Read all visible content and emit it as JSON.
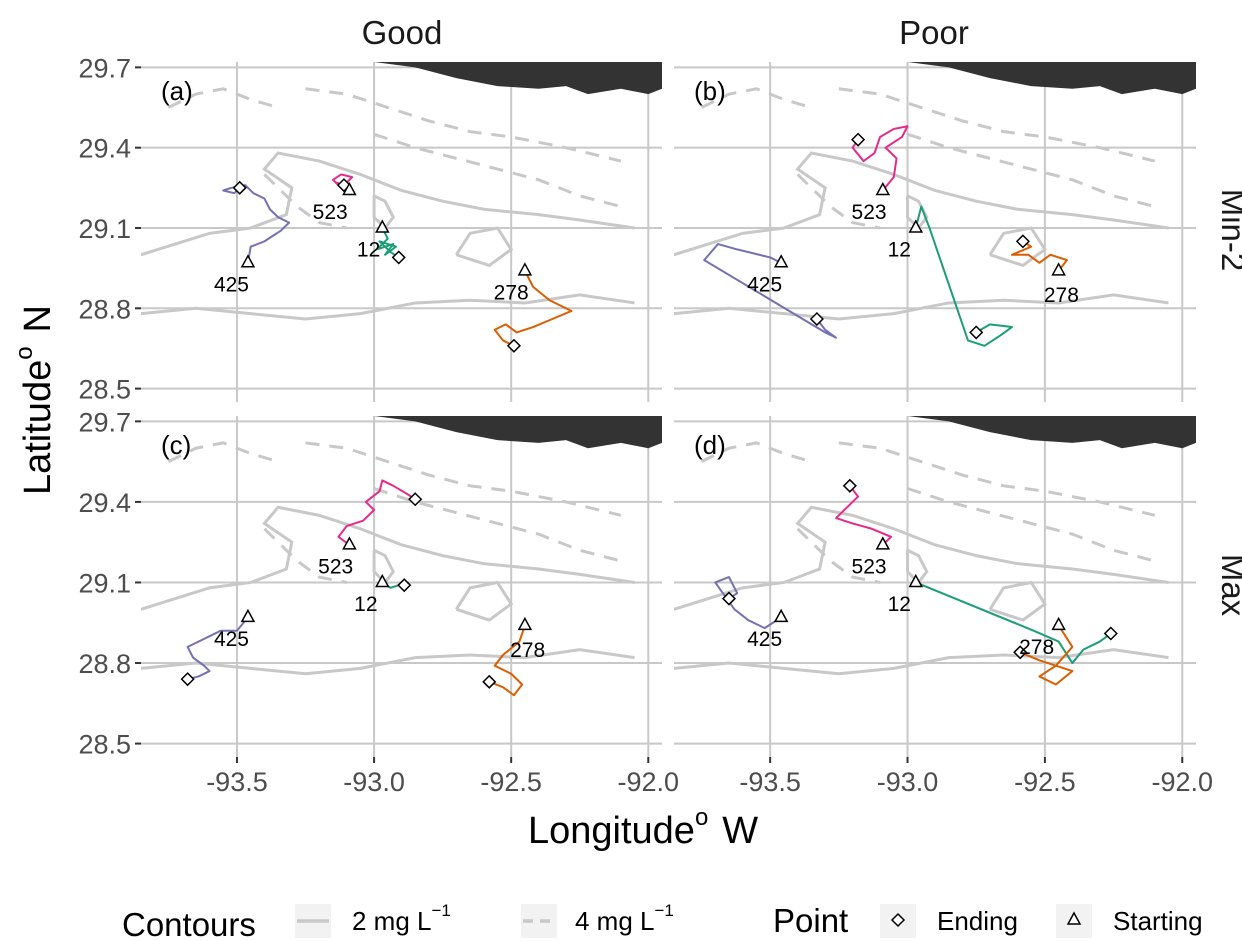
{
  "chart_data": {
    "type": "line",
    "xlabel": "Longitude",
    "xlabel_sup": "o",
    "xlabel_suffix": "W",
    "ylabel": "Latitude",
    "ylabel_sup": "o",
    "ylabel_suffix": "N",
    "xlim": [
      -93.85,
      -91.95
    ],
    "ylim": [
      28.45,
      29.72
    ],
    "x_ticks": [
      -93.5,
      -93.0,
      -92.5,
      -92.0
    ],
    "x_tick_labels": [
      "-93.5",
      "-93.0",
      "-92.5",
      "-92.0"
    ],
    "y_ticks": [
      28.5,
      28.8,
      29.1,
      29.4,
      29.7
    ],
    "y_tick_labels": [
      "28.5",
      "28.8",
      "29.1",
      "29.4",
      "29.7"
    ],
    "grid": true,
    "columns": [
      "Good",
      "Poor"
    ],
    "rows": [
      "Min-2",
      "Max"
    ],
    "colors": {
      "425": "#7570b3",
      "523": "#e7298a",
      "12": "#1b9e77",
      "278": "#d95f02",
      "grid": "#c8c8c8",
      "contour": "#c8c8c8",
      "land": "#333333"
    },
    "legend": {
      "position": "bottom",
      "contours_title": "Contours",
      "contour_2_text": "2  mg  L",
      "contour_4_text": "4  mg  L",
      "contour_exp": "−1",
      "point_title": "Point",
      "ending": "Ending",
      "starting": "Starting"
    },
    "panels": [
      {
        "tag": "(a)",
        "column": "Good",
        "row": "Min-2",
        "tracks": [
          {
            "id": "425",
            "start": [
              -93.46,
              28.97
            ],
            "end": [
              -93.49,
              29.25
            ],
            "label_at": [
              -93.52,
              28.93
            ],
            "path": [
              [
                -93.46,
                28.97
              ],
              [
                -93.45,
                29.03
              ],
              [
                -93.4,
                29.05
              ],
              [
                -93.37,
                29.07
              ],
              [
                -93.34,
                29.09
              ],
              [
                -93.31,
                29.12
              ],
              [
                -93.35,
                29.14
              ],
              [
                -93.38,
                29.17
              ],
              [
                -93.4,
                29.21
              ],
              [
                -93.44,
                29.23
              ],
              [
                -93.47,
                29.26
              ],
              [
                -93.52,
                29.25
              ],
              [
                -93.55,
                29.24
              ],
              [
                -93.51,
                29.23
              ],
              [
                -93.49,
                29.25
              ]
            ]
          },
          {
            "id": "523",
            "start": [
              -93.09,
              29.24
            ],
            "end": [
              -93.11,
              29.26
            ],
            "label_at": [
              -93.16,
              29.2
            ],
            "path": [
              [
                -93.09,
                29.24
              ],
              [
                -93.1,
                29.27
              ],
              [
                -93.08,
                29.29
              ],
              [
                -93.12,
                29.3
              ],
              [
                -93.15,
                29.28
              ],
              [
                -93.12,
                29.25
              ],
              [
                -93.14,
                29.27
              ],
              [
                -93.11,
                29.26
              ]
            ]
          },
          {
            "id": "12",
            "start": [
              -92.97,
              29.1
            ],
            "end": [
              -92.91,
              28.99
            ],
            "label_at": [
              -93.02,
              29.06
            ],
            "path": [
              [
                -92.97,
                29.1
              ],
              [
                -92.95,
                29.06
              ],
              [
                -92.99,
                29.02
              ],
              [
                -92.93,
                29.04
              ],
              [
                -92.96,
                29.0
              ],
              [
                -92.92,
                29.03
              ],
              [
                -92.98,
                29.05
              ],
              [
                -92.94,
                29.01
              ],
              [
                -92.91,
                28.99
              ]
            ]
          },
          {
            "id": "278",
            "start": [
              -92.45,
              28.94
            ],
            "end": [
              -92.49,
              28.66
            ],
            "label_at": [
              -92.5,
              28.9
            ],
            "path": [
              [
                -92.45,
                28.94
              ],
              [
                -92.42,
                28.88
              ],
              [
                -92.36,
                28.83
              ],
              [
                -92.28,
                28.79
              ],
              [
                -92.35,
                28.76
              ],
              [
                -92.42,
                28.73
              ],
              [
                -92.48,
                28.71
              ],
              [
                -92.52,
                28.74
              ],
              [
                -92.56,
                28.72
              ],
              [
                -92.53,
                28.68
              ],
              [
                -92.49,
                28.66
              ]
            ]
          }
        ]
      },
      {
        "tag": "(b)",
        "column": "Poor",
        "row": "Min-2",
        "tracks": [
          {
            "id": "425",
            "start": [
              -93.46,
              28.97
            ],
            "end": [
              -93.33,
              28.76
            ],
            "label_at": [
              -93.52,
              28.93
            ],
            "path": [
              [
                -93.46,
                28.97
              ],
              [
                -93.5,
                28.99
              ],
              [
                -93.62,
                29.02
              ],
              [
                -93.69,
                29.04
              ],
              [
                -93.74,
                28.98
              ],
              [
                -93.3,
                28.71
              ],
              [
                -93.26,
                28.69
              ],
              [
                -93.3,
                28.72
              ],
              [
                -93.33,
                28.76
              ]
            ]
          },
          {
            "id": "523",
            "start": [
              -93.09,
              29.24
            ],
            "end": [
              -93.18,
              29.43
            ],
            "label_at": [
              -93.14,
              29.2
            ],
            "path": [
              [
                -93.09,
                29.24
              ],
              [
                -93.05,
                29.29
              ],
              [
                -93.04,
                29.36
              ],
              [
                -93.08,
                29.4
              ],
              [
                -93.02,
                29.44
              ],
              [
                -93.0,
                29.48
              ],
              [
                -93.05,
                29.47
              ],
              [
                -93.1,
                29.44
              ],
              [
                -93.12,
                29.38
              ],
              [
                -93.16,
                29.35
              ],
              [
                -93.2,
                29.4
              ],
              [
                -93.18,
                29.43
              ]
            ]
          },
          {
            "id": "12",
            "start": [
              -92.97,
              29.1
            ],
            "end": [
              -92.75,
              28.71
            ],
            "label_at": [
              -93.03,
              29.06
            ],
            "path": [
              [
                -92.97,
                29.1
              ],
              [
                -92.95,
                29.18
              ],
              [
                -92.92,
                29.1
              ],
              [
                -92.78,
                28.68
              ],
              [
                -92.72,
                28.66
              ],
              [
                -92.66,
                28.7
              ],
              [
                -92.62,
                28.73
              ],
              [
                -92.7,
                28.74
              ],
              [
                -92.75,
                28.71
              ]
            ]
          },
          {
            "id": "278",
            "start": [
              -92.45,
              28.94
            ],
            "end": [
              -92.58,
              29.05
            ],
            "label_at": [
              -92.44,
              28.89
            ],
            "path": [
              [
                -92.45,
                28.94
              ],
              [
                -92.42,
                28.98
              ],
              [
                -92.48,
                29.0
              ],
              [
                -92.52,
                28.97
              ],
              [
                -92.56,
                29.0
              ],
              [
                -92.62,
                29.0
              ],
              [
                -92.55,
                29.03
              ],
              [
                -92.58,
                29.05
              ]
            ]
          }
        ]
      },
      {
        "tag": "(c)",
        "column": "Good",
        "row": "Max",
        "tracks": [
          {
            "id": "425",
            "start": [
              -93.46,
              28.97
            ],
            "end": [
              -93.68,
              28.74
            ],
            "label_at": [
              -93.52,
              28.93
            ],
            "path": [
              [
                -93.46,
                28.97
              ],
              [
                -93.5,
                28.92
              ],
              [
                -93.56,
                28.92
              ],
              [
                -93.62,
                28.89
              ],
              [
                -93.68,
                28.86
              ],
              [
                -93.66,
                28.82
              ],
              [
                -93.62,
                28.79
              ],
              [
                -93.6,
                28.77
              ],
              [
                -93.64,
                28.75
              ],
              [
                -93.68,
                28.74
              ]
            ]
          },
          {
            "id": "523",
            "start": [
              -93.09,
              29.24
            ],
            "end": [
              -92.85,
              29.41
            ],
            "label_at": [
              -93.14,
              29.2
            ],
            "path": [
              [
                -93.09,
                29.24
              ],
              [
                -93.13,
                29.27
              ],
              [
                -93.1,
                29.31
              ],
              [
                -93.04,
                29.33
              ],
              [
                -93.0,
                29.37
              ],
              [
                -93.03,
                29.4
              ],
              [
                -92.98,
                29.44
              ],
              [
                -92.97,
                29.48
              ],
              [
                -92.93,
                29.46
              ],
              [
                -92.88,
                29.43
              ],
              [
                -92.85,
                29.41
              ]
            ]
          },
          {
            "id": "12",
            "start": [
              -92.97,
              29.1
            ],
            "end": [
              -92.89,
              29.09
            ],
            "label_at": [
              -93.03,
              29.06
            ],
            "path": [
              [
                -92.97,
                29.1
              ],
              [
                -92.94,
                29.08
              ],
              [
                -92.91,
                29.09
              ],
              [
                -92.89,
                29.09
              ]
            ]
          },
          {
            "id": "278",
            "start": [
              -92.45,
              28.94
            ],
            "end": [
              -92.58,
              28.73
            ],
            "label_at": [
              -92.44,
              28.89
            ],
            "path": [
              [
                -92.45,
                28.94
              ],
              [
                -92.47,
                28.88
              ],
              [
                -92.53,
                28.83
              ],
              [
                -92.56,
                28.79
              ],
              [
                -92.5,
                28.76
              ],
              [
                -92.46,
                28.72
              ],
              [
                -92.49,
                28.68
              ],
              [
                -92.53,
                28.71
              ],
              [
                -92.58,
                28.73
              ]
            ]
          }
        ]
      },
      {
        "tag": "(d)",
        "column": "Poor",
        "row": "Max",
        "tracks": [
          {
            "id": "425",
            "start": [
              -93.46,
              28.97
            ],
            "end": [
              -93.65,
              29.04
            ],
            "label_at": [
              -93.52,
              28.93
            ],
            "path": [
              [
                -93.46,
                28.97
              ],
              [
                -93.52,
                28.93
              ],
              [
                -93.58,
                28.96
              ],
              [
                -93.63,
                29.0
              ],
              [
                -93.7,
                29.1
              ],
              [
                -93.65,
                29.12
              ],
              [
                -93.62,
                29.06
              ],
              [
                -93.65,
                29.04
              ]
            ]
          },
          {
            "id": "523",
            "start": [
              -93.09,
              29.24
            ],
            "end": [
              -93.21,
              29.46
            ],
            "label_at": [
              -93.14,
              29.2
            ],
            "path": [
              [
                -93.09,
                29.24
              ],
              [
                -93.06,
                29.27
              ],
              [
                -93.13,
                29.3
              ],
              [
                -93.2,
                29.32
              ],
              [
                -93.26,
                29.34
              ],
              [
                -93.22,
                29.38
              ],
              [
                -93.18,
                29.42
              ],
              [
                -93.21,
                29.46
              ]
            ]
          },
          {
            "id": "12",
            "start": [
              -92.97,
              29.1
            ],
            "end": [
              -92.26,
              28.91
            ],
            "label_at": [
              -93.03,
              29.06
            ],
            "path": [
              [
                -92.97,
                29.1
              ],
              [
                -92.54,
                28.92
              ],
              [
                -92.45,
                28.88
              ],
              [
                -92.4,
                28.8
              ],
              [
                -92.36,
                28.85
              ],
              [
                -92.3,
                28.88
              ],
              [
                -92.26,
                28.91
              ]
            ]
          },
          {
            "id": "278",
            "start": [
              -92.45,
              28.94
            ],
            "end": [
              -92.59,
              28.84
            ],
            "label_at": [
              -92.53,
              28.9
            ],
            "path": [
              [
                -92.45,
                28.94
              ],
              [
                -92.4,
                28.86
              ],
              [
                -92.46,
                28.79
              ],
              [
                -92.52,
                28.75
              ],
              [
                -92.46,
                28.72
              ],
              [
                -92.4,
                28.77
              ],
              [
                -92.52,
                28.81
              ],
              [
                -92.59,
                28.84
              ]
            ]
          }
        ]
      }
    ]
  }
}
